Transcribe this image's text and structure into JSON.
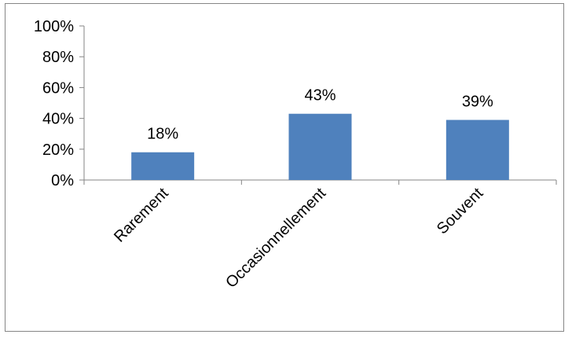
{
  "chart_data": {
    "type": "bar",
    "categories": [
      "Rarement",
      "Occasionnellement",
      "Souvent"
    ],
    "values": [
      18,
      43,
      39
    ],
    "data_labels": [
      "18%",
      "43%",
      "39%"
    ],
    "title": "",
    "xlabel": "",
    "ylabel": "",
    "ylim": [
      0,
      100
    ],
    "y_ticks": [
      0,
      20,
      40,
      60,
      80,
      100
    ],
    "y_tick_labels": [
      "0%",
      "20%",
      "40%",
      "60%",
      "80%",
      "100%"
    ],
    "grid": false,
    "legend": "none",
    "bar_color": "#4f81bd",
    "axis_color": "#868686"
  }
}
